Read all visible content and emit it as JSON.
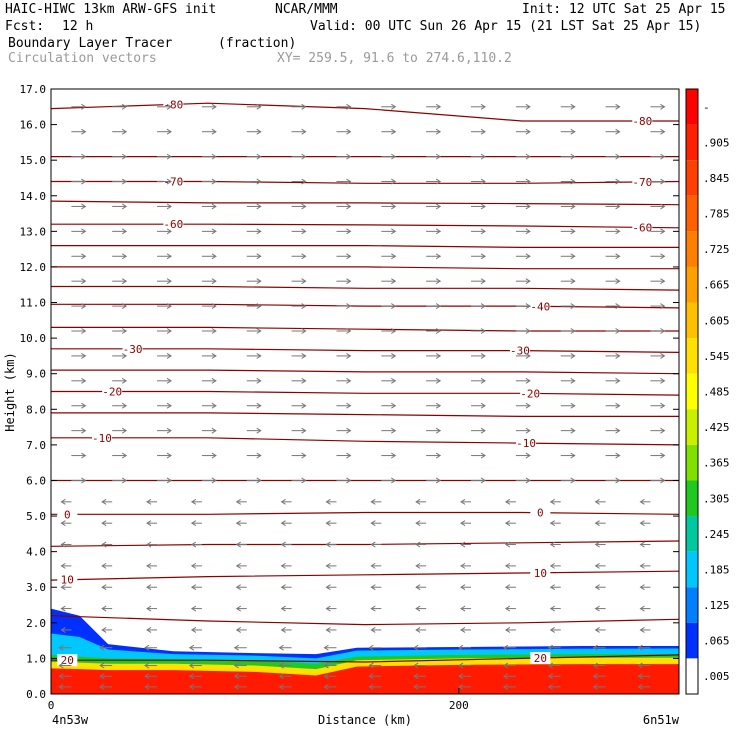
{
  "header": {
    "model": "HAIC-HIWC 13km ARW-GFS init",
    "org": "NCAR/MMM",
    "init": "Init: 12 UTC Sat 25 Apr 15",
    "fcst_label": "Fcst:",
    "fcst_value": "12 h",
    "valid": "Valid: 00 UTC Sun 26 Apr 15 (21 LST Sat 25 Apr 15)",
    "field": "Boundary Layer Tracer",
    "field_units": "(fraction)",
    "vectors": "Circulation vectors",
    "xy": "XY= 259.5, 91.6 to 274.6,110.2"
  },
  "chart_data": {
    "type": "heatmap",
    "ylabel": "Height (km)",
    "xlabel": "Distance (km)",
    "x_left_label": "4n53w",
    "x_right_label": "6n51w",
    "xlim": [
      0,
      308
    ],
    "ylim": [
      0,
      17
    ],
    "x_ticks": [
      0,
      200
    ],
    "y_ticks": [
      "0.0",
      "1.0",
      "2.0",
      "3.0",
      "4.0",
      "5.0",
      "6.0",
      "7.0",
      "8.0",
      "9.0",
      "10.0",
      "11.0",
      "12.0",
      "13.0",
      "14.0",
      "15.0",
      "16.0",
      "17.0"
    ],
    "colorbar_labels": [
      "-",
      ".905",
      ".845",
      ".785",
      ".725",
      ".665",
      ".605",
      ".545",
      ".485",
      ".425",
      ".365",
      ".305",
      ".245",
      ".185",
      ".125",
      ".065",
      ".005"
    ],
    "colorbar_colors": [
      "#ff0000",
      "#ff2000",
      "#ff4000",
      "#ff6000",
      "#ff8000",
      "#ffa000",
      "#ffc000",
      "#ffe000",
      "#ffff00",
      "#c8f000",
      "#80e000",
      "#20c820",
      "#00c8a0",
      "#00c8ff",
      "#0080ff",
      "#0030ff",
      "#ffffff"
    ],
    "tracer_top_km": [
      {
        "x": 0,
        "blue": 2.4,
        "cyan": 1.7,
        "green": 1.1,
        "yellow": 0.9
      },
      {
        "x": 14,
        "blue": 2.2,
        "cyan": 1.6,
        "green": 1.05,
        "yellow": 0.88
      },
      {
        "x": 28,
        "blue": 1.4,
        "cyan": 1.25,
        "green": 1.0,
        "yellow": 0.85
      },
      {
        "x": 60,
        "blue": 1.2,
        "cyan": 1.12,
        "green": 0.98,
        "yellow": 0.85
      },
      {
        "x": 100,
        "blue": 1.15,
        "cyan": 1.08,
        "green": 0.95,
        "yellow": 0.8
      },
      {
        "x": 130,
        "blue": 1.12,
        "cyan": 1.0,
        "green": 0.85,
        "yellow": 0.7
      },
      {
        "x": 150,
        "blue": 1.3,
        "cyan": 1.22,
        "green": 1.05,
        "yellow": 0.95
      },
      {
        "x": 200,
        "blue": 1.32,
        "cyan": 1.25,
        "green": 1.1,
        "yellow": 1.0
      },
      {
        "x": 260,
        "blue": 1.35,
        "cyan": 1.27,
        "green": 1.12,
        "yellow": 1.02
      },
      {
        "x": 308,
        "blue": 1.35,
        "cyan": 1.28,
        "green": 1.12,
        "yellow": 1.02
      }
    ],
    "isotherms": [
      {
        "label": "-80",
        "y": [
          16.45,
          16.6,
          16.45,
          16.1,
          16.1
        ],
        "label_x": [
          60,
          290
        ]
      },
      {
        "label": "",
        "y": [
          15.1,
          15.1,
          15.1,
          15.1,
          15.1
        ],
        "label_x": []
      },
      {
        "label": "-70",
        "y": [
          14.4,
          14.4,
          14.35,
          14.35,
          14.4
        ],
        "label_x": [
          60,
          290
        ]
      },
      {
        "label": "",
        "y": [
          13.85,
          13.8,
          13.8,
          13.78,
          13.75
        ],
        "label_x": []
      },
      {
        "label": "-60",
        "y": [
          13.2,
          13.2,
          13.18,
          13.15,
          13.1
        ],
        "label_x": [
          60,
          290
        ]
      },
      {
        "label": "",
        "y": [
          12.6,
          12.6,
          12.6,
          12.55,
          12.55
        ],
        "label_x": []
      },
      {
        "label": "",
        "y": [
          12.0,
          12.0,
          12.0,
          11.95,
          11.95
        ],
        "label_x": []
      },
      {
        "label": "",
        "y": [
          11.45,
          11.45,
          11.4,
          11.4,
          11.35
        ],
        "label_x": []
      },
      {
        "label": "-40",
        "y": [
          10.95,
          10.95,
          10.9,
          10.9,
          10.85
        ],
        "label_x": [
          240
        ]
      },
      {
        "label": "",
        "y": [
          10.3,
          10.3,
          10.25,
          10.2,
          10.2
        ],
        "label_x": []
      },
      {
        "label": "-30",
        "y": [
          9.7,
          9.7,
          9.65,
          9.65,
          9.6
        ],
        "label_x": [
          40,
          230
        ]
      },
      {
        "label": "",
        "y": [
          9.1,
          9.1,
          9.05,
          9.05,
          9.0
        ],
        "label_x": []
      },
      {
        "label": "-20",
        "y": [
          8.5,
          8.5,
          8.45,
          8.45,
          8.4
        ],
        "label_x": [
          30,
          235
        ]
      },
      {
        "label": "",
        "y": [
          7.9,
          7.9,
          7.85,
          7.8,
          7.8
        ],
        "label_x": []
      },
      {
        "label": "-10",
        "y": [
          7.2,
          7.2,
          7.1,
          7.05,
          7.0
        ],
        "label_x": [
          25,
          233
        ]
      },
      {
        "label": "",
        "y": [
          6.0,
          6.0,
          6.0,
          6.0,
          6.0
        ],
        "label_x": []
      },
      {
        "label": "0",
        "y": [
          5.05,
          5.05,
          5.1,
          5.1,
          5.05
        ],
        "label_x": [
          8,
          240
        ]
      },
      {
        "label": "",
        "y": [
          4.15,
          4.2,
          4.2,
          4.25,
          4.3
        ],
        "label_x": []
      },
      {
        "label": "10",
        "y": [
          3.2,
          3.3,
          3.35,
          3.4,
          3.45
        ],
        "label_x": [
          8,
          240
        ]
      },
      {
        "label": "",
        "y": [
          2.2,
          2.05,
          1.95,
          2.0,
          2.1
        ],
        "label_x": []
      },
      {
        "label": "20",
        "y": [
          0.95,
          0.95,
          0.9,
          1.0,
          1.1
        ],
        "label_x": [
          8,
          240
        ]
      }
    ],
    "vectors": {
      "rows_km": [
        0.2,
        0.5,
        0.8,
        1.3,
        1.8,
        2.4,
        3.0,
        3.6,
        4.2,
        4.8,
        5.4,
        6.0,
        6.7,
        7.4,
        8.1,
        8.8,
        9.5,
        10.2,
        10.9,
        11.6,
        12.3,
        13.0,
        13.7,
        14.4,
        15.1,
        15.8,
        16.5
      ],
      "cols_km": [
        10,
        30,
        52,
        74,
        96,
        118,
        140,
        162,
        184,
        206,
        228,
        250,
        272,
        294
      ],
      "upper_dir": "east",
      "lower_dir": "west"
    }
  }
}
